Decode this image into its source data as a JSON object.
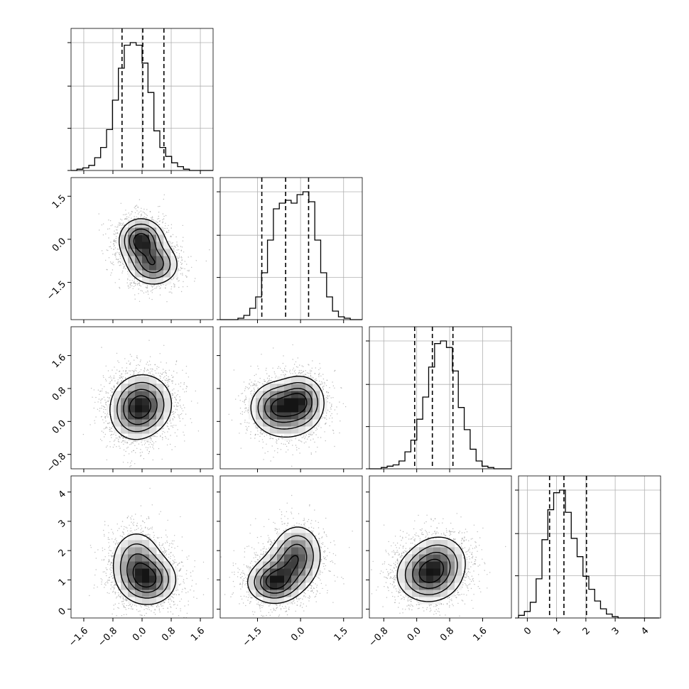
{
  "chart_data": {
    "type": "corner",
    "parameters": 4,
    "axis_ticks": [
      {
        "values": [
          -1.6,
          -0.8,
          0.0,
          0.8,
          1.6
        ],
        "labels": [
          "−1.6",
          "−0.8",
          "0.0",
          "0.8",
          "1.6"
        ],
        "range": [
          -1.95,
          1.95
        ]
      },
      {
        "values": [
          -1.5,
          0.0,
          1.5
        ],
        "labels": [
          "−1.5",
          "0.0",
          "1.5"
        ],
        "range": [
          -2.8,
          2.15
        ]
      },
      {
        "values": [
          -0.8,
          0.0,
          0.8,
          1.6
        ],
        "labels": [
          "−0.8",
          "0.0",
          "0.8",
          "1.6"
        ],
        "range": [
          -1.15,
          2.3
        ]
      },
      {
        "values": [
          0,
          1,
          2,
          3,
          4
        ],
        "labels": [
          "0",
          "1",
          "2",
          "3",
          "4"
        ],
        "range": [
          -0.3,
          4.55
        ]
      }
    ],
    "y_ticks_shown": {
      "row_1": [
        "−1.5",
        "0.0",
        "1.5"
      ],
      "row_2": [
        "−0.8",
        "0.0",
        "0.8",
        "1.6"
      ],
      "row_3": [
        "0",
        "1",
        "2",
        "3",
        "4"
      ]
    },
    "histograms": [
      {
        "parameter": 0,
        "bin_start": -1.95,
        "bin_width": 0.1625,
        "counts": [
          0,
          1,
          2,
          4,
          10,
          18,
          32,
          55,
          80,
          98,
          100,
          98,
          84,
          61,
          31,
          18,
          11,
          6,
          3,
          1,
          0,
          0,
          0,
          0
        ],
        "quantiles": [
          -0.55,
          0.02,
          0.6
        ]
      },
      {
        "parameter": 1,
        "bin_start": -2.8,
        "bin_width": 0.206,
        "counts": [
          0,
          0,
          0,
          1,
          3,
          8,
          16,
          33,
          56,
          78,
          82,
          84,
          82,
          88,
          90,
          83,
          56,
          33,
          16,
          6,
          2,
          1,
          0,
          0
        ],
        "quantiles": [
          -1.35,
          -0.52,
          0.28
        ]
      },
      {
        "parameter": 2,
        "bin_start": -1.15,
        "bin_width": 0.144,
        "counts": [
          0,
          0,
          1,
          2,
          3,
          6,
          13,
          22,
          38,
          55,
          78,
          96,
          98,
          93,
          75,
          47,
          30,
          15,
          6,
          2,
          1,
          0,
          0,
          0
        ],
        "quantiles": [
          -0.05,
          0.38,
          0.88
        ]
      },
      {
        "parameter": 3,
        "bin_start": -0.3,
        "bin_width": 0.2,
        "counts": [
          2,
          5,
          12,
          30,
          60,
          83,
          96,
          98,
          81,
          61,
          47,
          32,
          22,
          13,
          7,
          3,
          1,
          0,
          0,
          0,
          0,
          0,
          0,
          0
        ],
        "quantiles": [
          0.76,
          1.25,
          2.02
        ]
      }
    ],
    "joint_densities": [
      {
        "x_parameter": 0,
        "y_parameter": 1,
        "peaks": [
          {
            "x": -0.05,
            "y": 0.0,
            "sx": 0.28,
            "sy": 0.35,
            "w": 1.0
          },
          {
            "x": 0.35,
            "y": -0.9,
            "sx": 0.33,
            "sy": 0.35,
            "w": 0.8
          },
          {
            "x": 0.1,
            "y": -0.4,
            "sx": 0.35,
            "sy": 0.5,
            "w": 0.5
          }
        ]
      },
      {
        "x_parameter": 0,
        "y_parameter": 2,
        "peaks": [
          {
            "x": 0.02,
            "y": 0.42,
            "sx": 0.4,
            "sy": 0.36,
            "w": 1.0
          },
          {
            "x": -0.25,
            "y": 0.15,
            "sx": 0.35,
            "sy": 0.35,
            "w": 0.4
          }
        ]
      },
      {
        "x_parameter": 1,
        "y_parameter": 2,
        "peaks": [
          {
            "x": -0.85,
            "y": 0.35,
            "sx": 0.45,
            "sy": 0.3,
            "w": 0.9
          },
          {
            "x": 0.0,
            "y": 0.5,
            "sx": 0.4,
            "sy": 0.3,
            "w": 1.0
          },
          {
            "x": -0.4,
            "y": 0.2,
            "sx": 0.6,
            "sy": 0.38,
            "w": 0.4
          }
        ]
      },
      {
        "x_parameter": 0,
        "y_parameter": 3,
        "peaks": [
          {
            "x": 0.18,
            "y": 1.0,
            "sx": 0.38,
            "sy": 0.42,
            "w": 1.0
          },
          {
            "x": -0.15,
            "y": 1.6,
            "sx": 0.35,
            "sy": 0.55,
            "w": 0.7
          }
        ]
      },
      {
        "x_parameter": 1,
        "y_parameter": 3,
        "peaks": [
          {
            "x": -0.95,
            "y": 0.9,
            "sx": 0.45,
            "sy": 0.35,
            "w": 1.0
          },
          {
            "x": -0.1,
            "y": 1.9,
            "sx": 0.42,
            "sy": 0.5,
            "w": 0.75
          },
          {
            "x": -0.5,
            "y": 1.35,
            "sx": 0.5,
            "sy": 0.45,
            "w": 0.55
          }
        ]
      },
      {
        "x_parameter": 2,
        "y_parameter": 3,
        "peaks": [
          {
            "x": 0.28,
            "y": 1.15,
            "sx": 0.38,
            "sy": 0.45,
            "w": 1.0
          },
          {
            "x": 0.55,
            "y": 1.7,
            "sx": 0.35,
            "sy": 0.45,
            "w": 0.55
          }
        ]
      }
    ],
    "contour_levels": [
      0.12,
      0.3,
      0.55,
      0.8
    ],
    "grid": true,
    "colors": {
      "line": "#000000",
      "grid": "#b0b0b0",
      "points": "#909090"
    }
  }
}
